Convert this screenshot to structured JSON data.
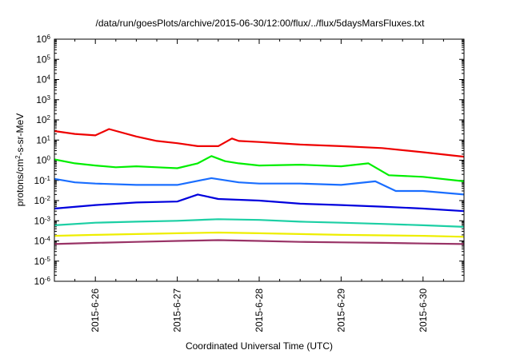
{
  "chart_data": {
    "type": "line",
    "title": "/data/run/goesPlots/archive/2015-06-30/12:00/flux/../flux/5daysMarsFluxes.txt",
    "xlabel": "Coordinated Universal Time (UTC)",
    "ylabel": {
      "prefix": "protons/cm",
      "sup": "2",
      "suffix": "-s-sr-MeV"
    },
    "y_scale": "log",
    "ylim_exponents": [
      -6,
      6
    ],
    "y_ticks": [
      {
        "base": "10",
        "exp": "-6",
        "value": 1e-06
      },
      {
        "base": "10",
        "exp": "-5",
        "value": 1e-05
      },
      {
        "base": "10",
        "exp": "-4",
        "value": 0.0001
      },
      {
        "base": "10",
        "exp": "-3",
        "value": 0.001
      },
      {
        "base": "10",
        "exp": "-2",
        "value": 0.01
      },
      {
        "base": "10",
        "exp": "-1",
        "value": 0.1
      },
      {
        "base": "10",
        "exp": "0",
        "value": 1
      },
      {
        "base": "10",
        "exp": "1",
        "value": 10
      },
      {
        "base": "10",
        "exp": "2",
        "value": 100
      },
      {
        "base": "10",
        "exp": "3",
        "value": 1000
      },
      {
        "base": "10",
        "exp": "4",
        "value": 10000
      },
      {
        "base": "10",
        "exp": "5",
        "value": 100000
      },
      {
        "base": "10",
        "exp": "6",
        "value": 1000000
      }
    ],
    "x_range": [
      "2015-06-25 12:00",
      "2015-06-30 12:00"
    ],
    "x_ticks": [
      {
        "label": "2015-6-26",
        "date": "2015-06-26"
      },
      {
        "label": "2015-6-27",
        "date": "2015-06-27"
      },
      {
        "label": "2015-6-28",
        "date": "2015-06-28"
      },
      {
        "label": "2015-6-29",
        "date": "2015-06-29"
      },
      {
        "label": "2015-6-30",
        "date": "2015-06-30"
      }
    ],
    "grid": false,
    "legend": "none",
    "series": [
      {
        "color": "#ee0000",
        "points": [
          [
            "2015-06-25 12:00",
            28
          ],
          [
            "2015-06-25 18:00",
            20
          ],
          [
            "2015-06-26 00:00",
            17
          ],
          [
            "2015-06-26 04:00",
            35
          ],
          [
            "2015-06-26 12:00",
            15
          ],
          [
            "2015-06-26 18:00",
            9
          ],
          [
            "2015-06-27 00:00",
            7
          ],
          [
            "2015-06-27 06:00",
            5
          ],
          [
            "2015-06-27 12:00",
            5
          ],
          [
            "2015-06-27 16:00",
            12
          ],
          [
            "2015-06-27 18:00",
            9
          ],
          [
            "2015-06-28 00:00",
            8
          ],
          [
            "2015-06-28 12:00",
            6
          ],
          [
            "2015-06-29 00:00",
            5
          ],
          [
            "2015-06-29 12:00",
            4
          ],
          [
            "2015-06-30 00:00",
            2.5
          ],
          [
            "2015-06-30 12:00",
            1.5
          ]
        ]
      },
      {
        "color": "#00ee00",
        "points": [
          [
            "2015-06-25 12:00",
            1.1
          ],
          [
            "2015-06-25 18:00",
            0.7
          ],
          [
            "2015-06-26 00:00",
            0.55
          ],
          [
            "2015-06-26 06:00",
            0.45
          ],
          [
            "2015-06-26 12:00",
            0.5
          ],
          [
            "2015-06-26 18:00",
            0.45
          ],
          [
            "2015-06-27 00:00",
            0.4
          ],
          [
            "2015-06-27 06:00",
            0.7
          ],
          [
            "2015-06-27 10:00",
            1.6
          ],
          [
            "2015-06-27 14:00",
            0.9
          ],
          [
            "2015-06-27 18:00",
            0.7
          ],
          [
            "2015-06-28 00:00",
            0.55
          ],
          [
            "2015-06-28 12:00",
            0.6
          ],
          [
            "2015-06-29 00:00",
            0.5
          ],
          [
            "2015-06-29 08:00",
            0.7
          ],
          [
            "2015-06-29 14:00",
            0.18
          ],
          [
            "2015-06-30 00:00",
            0.15
          ],
          [
            "2015-06-30 12:00",
            0.09
          ]
        ]
      },
      {
        "color": "#1a6eff",
        "points": [
          [
            "2015-06-25 12:00",
            0.12
          ],
          [
            "2015-06-25 18:00",
            0.08
          ],
          [
            "2015-06-26 00:00",
            0.07
          ],
          [
            "2015-06-26 12:00",
            0.06
          ],
          [
            "2015-06-27 00:00",
            0.06
          ],
          [
            "2015-06-27 10:00",
            0.13
          ],
          [
            "2015-06-27 18:00",
            0.08
          ],
          [
            "2015-06-28 00:00",
            0.07
          ],
          [
            "2015-06-28 12:00",
            0.07
          ],
          [
            "2015-06-29 00:00",
            0.06
          ],
          [
            "2015-06-29 10:00",
            0.09
          ],
          [
            "2015-06-29 16:00",
            0.03
          ],
          [
            "2015-06-30 00:00",
            0.03
          ],
          [
            "2015-06-30 12:00",
            0.02
          ]
        ]
      },
      {
        "color": "#0000dd",
        "points": [
          [
            "2015-06-25 12:00",
            0.004
          ],
          [
            "2015-06-26 00:00",
            0.006
          ],
          [
            "2015-06-26 12:00",
            0.008
          ],
          [
            "2015-06-27 00:00",
            0.009
          ],
          [
            "2015-06-27 06:00",
            0.02
          ],
          [
            "2015-06-27 12:00",
            0.012
          ],
          [
            "2015-06-28 00:00",
            0.01
          ],
          [
            "2015-06-28 12:00",
            0.007
          ],
          [
            "2015-06-29 00:00",
            0.006
          ],
          [
            "2015-06-29 12:00",
            0.005
          ],
          [
            "2015-06-30 00:00",
            0.004
          ],
          [
            "2015-06-30 12:00",
            0.003
          ]
        ]
      },
      {
        "color": "#1ccfa4",
        "points": [
          [
            "2015-06-25 12:00",
            0.0006
          ],
          [
            "2015-06-26 00:00",
            0.0008
          ],
          [
            "2015-06-26 12:00",
            0.0009
          ],
          [
            "2015-06-27 00:00",
            0.001
          ],
          [
            "2015-06-27 12:00",
            0.0012
          ],
          [
            "2015-06-28 00:00",
            0.0011
          ],
          [
            "2015-06-28 12:00",
            0.0009
          ],
          [
            "2015-06-29 00:00",
            0.0008
          ],
          [
            "2015-06-29 12:00",
            0.0007
          ],
          [
            "2015-06-30 00:00",
            0.0006
          ],
          [
            "2015-06-30 12:00",
            0.0005
          ]
        ]
      },
      {
        "color": "#eeee00",
        "points": [
          [
            "2015-06-25 12:00",
            0.00018
          ],
          [
            "2015-06-26 00:00",
            0.0002
          ],
          [
            "2015-06-26 12:00",
            0.00022
          ],
          [
            "2015-06-27 00:00",
            0.00024
          ],
          [
            "2015-06-27 12:00",
            0.00026
          ],
          [
            "2015-06-28 00:00",
            0.00024
          ],
          [
            "2015-06-28 12:00",
            0.00022
          ],
          [
            "2015-06-29 00:00",
            0.0002
          ],
          [
            "2015-06-29 12:00",
            0.00019
          ],
          [
            "2015-06-30 00:00",
            0.00018
          ],
          [
            "2015-06-30 12:00",
            0.00016
          ]
        ]
      },
      {
        "color": "#993366",
        "points": [
          [
            "2015-06-25 12:00",
            7e-05
          ],
          [
            "2015-06-26 00:00",
            8e-05
          ],
          [
            "2015-06-26 12:00",
            9e-05
          ],
          [
            "2015-06-27 00:00",
            0.0001
          ],
          [
            "2015-06-27 12:00",
            0.00011
          ],
          [
            "2015-06-28 00:00",
            0.0001
          ],
          [
            "2015-06-28 12:00",
            9e-05
          ],
          [
            "2015-06-29 00:00",
            8.5e-05
          ],
          [
            "2015-06-29 12:00",
            8e-05
          ],
          [
            "2015-06-30 00:00",
            7.5e-05
          ],
          [
            "2015-06-30 12:00",
            7e-05
          ]
        ]
      }
    ]
  }
}
